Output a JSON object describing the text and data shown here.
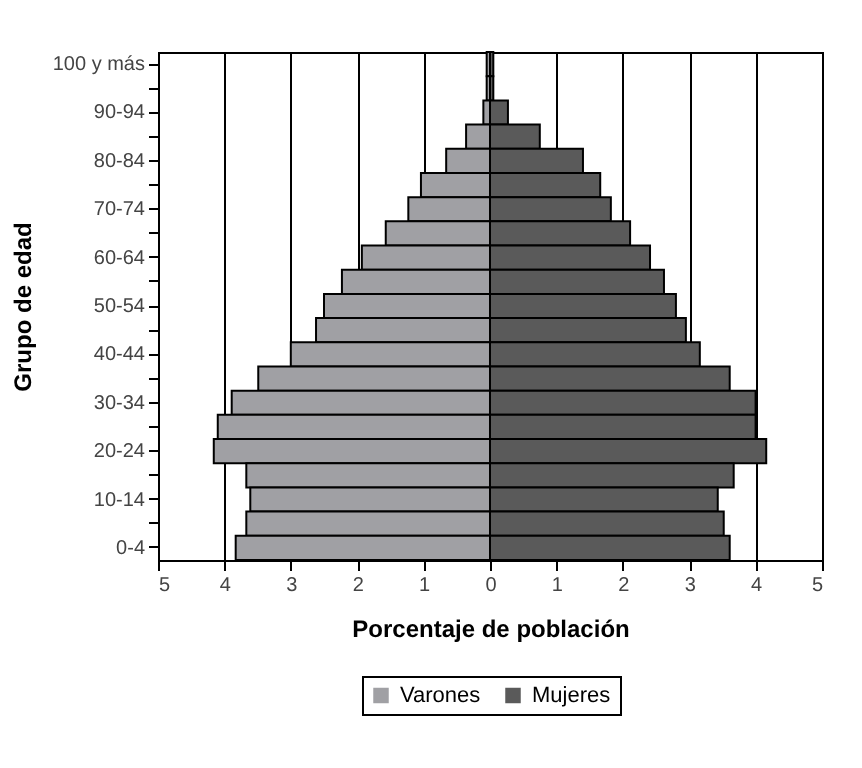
{
  "chart_data": {
    "type": "bar",
    "orientation": "horizontal",
    "xlabel": "Porcentaje de población",
    "ylabel": "Grupo de edad",
    "categories": [
      "100 y más",
      null,
      "90-94",
      null,
      "80-84",
      null,
      "70-74",
      null,
      "60-64",
      null,
      "50-54",
      null,
      "40-44",
      null,
      "30-34",
      null,
      "20-24",
      null,
      "10-14",
      null,
      "0-4"
    ],
    "series": [
      {
        "name": "Varones",
        "color": "#a0a0a4",
        "values": [
          -0.05,
          -0.05,
          -0.1,
          -0.36,
          -0.66,
          -1.04,
          -1.23,
          -1.57,
          -1.93,
          -2.23,
          -2.5,
          -2.62,
          -3.0,
          -3.49,
          -3.89,
          -4.1,
          -4.16,
          -3.67,
          -3.61,
          -3.67,
          -3.83
        ]
      },
      {
        "name": "Mujeres",
        "color": "#5a5a5a",
        "values": [
          0.05,
          0.05,
          0.27,
          0.75,
          1.4,
          1.66,
          1.82,
          2.11,
          2.41,
          2.62,
          2.8,
          2.95,
          3.16,
          3.61,
          4.0,
          4.0,
          4.16,
          3.67,
          3.43,
          3.52,
          3.61
        ]
      }
    ],
    "xlim": [
      -5,
      5
    ],
    "xticks": [
      {
        "value": -5,
        "label": "5"
      },
      {
        "value": -4,
        "label": "4"
      },
      {
        "value": -3,
        "label": "3"
      },
      {
        "value": -2,
        "label": "2"
      },
      {
        "value": -1,
        "label": "1"
      },
      0,
      1,
      2,
      3,
      4,
      5
    ],
    "stacked": true,
    "grid": "x",
    "legend": "bottom"
  }
}
